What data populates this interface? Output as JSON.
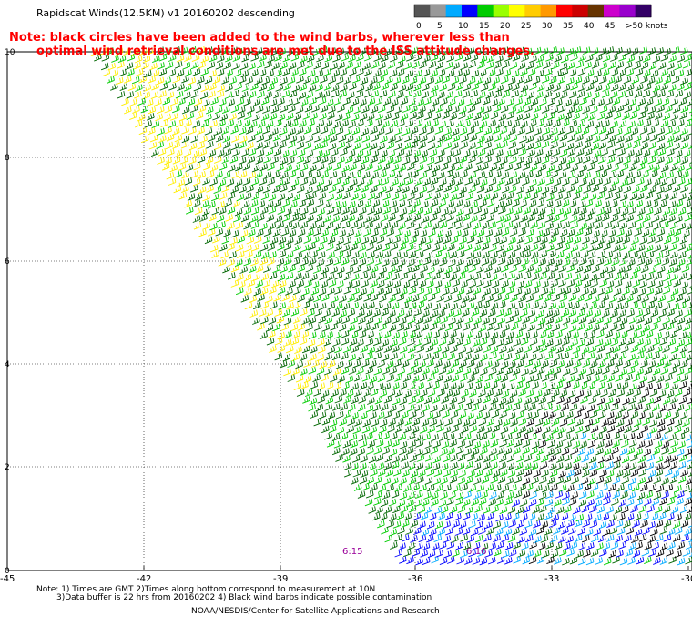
{
  "title": "Rapidscat Winds(12.5KM) v1 20160202 descending",
  "note": {
    "line1": "Note: black circles have been added to the wind barbs, wherever less than",
    "line2": "optimal wind retrieval conditions are met due to the ISS attitude changes."
  },
  "legend": {
    "labels": [
      "0",
      "5",
      "10",
      "15",
      "20",
      "25",
      "30",
      "35",
      "40",
      "45",
      ">50 knots"
    ],
    "colors": [
      "#555555",
      "#999999",
      "#00aaff",
      "#0000ff",
      "#00cc00",
      "#99ff00",
      "#ffff00",
      "#ffcc00",
      "#ff9900",
      "#ff0000",
      "#cc0000",
      "#663300",
      "#cc00cc",
      "#9900cc",
      "#330066"
    ]
  },
  "axes": {
    "x_ticks": [
      "-45",
      "-42",
      "-39",
      "-36",
      "-33",
      "-30"
    ],
    "y_ticks": [
      "0",
      "2",
      "4",
      "6",
      "8",
      "10"
    ]
  },
  "time_labels": [
    "6:15",
    "6:16"
  ],
  "footer": {
    "line1": "Note: 1) Times are GMT 2)Times along bottom correspond to measurement at 10N",
    "line2": "3)Data buffer is 22 hrs from 20160202 4) Black wind barbs indicate possible contamination",
    "line3": "NOAA/NESDIS/Center for Satellite Applications and Research"
  },
  "colors": {
    "note": "#ff0000",
    "barb_dark_green": "#006600",
    "barb_green": "#00cc00",
    "barb_yellow": "#ffee00",
    "barb_blue": "#0000ff",
    "barb_cyan": "#00aaff",
    "barb_black": "#000000",
    "time_label": "#990099"
  }
}
